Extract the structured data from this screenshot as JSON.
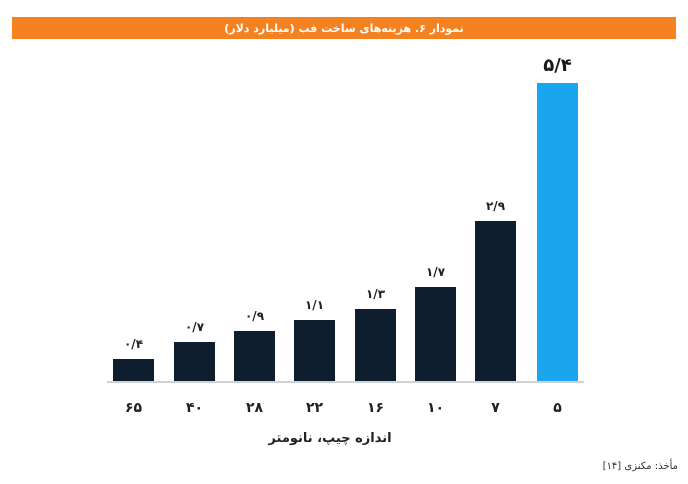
{
  "header": {
    "title": "نمودار ۶. هزینه‌های ساخت فب (میلیارد دلار)",
    "background_color": "#F58220"
  },
  "chart_data": {
    "type": "bar",
    "title": "نمودار ۶. هزینه‌های ساخت فب (میلیارد دلار)",
    "xlabel": "اندازه چیپ، نانومتر",
    "ylabel": "",
    "categories": [
      "65",
      "40",
      "28",
      "22",
      "16",
      "10",
      "7",
      "5"
    ],
    "category_labels": [
      "۶۵",
      "۴۰",
      "۲۸",
      "۲۲",
      "۱۶",
      "۱۰",
      "۷",
      "۵"
    ],
    "values": [
      0.4,
      0.7,
      0.9,
      1.1,
      1.3,
      1.7,
      2.9,
      5.4
    ],
    "value_labels": [
      "۰/۴",
      "۰/۷",
      "۰/۹",
      "۱/۱",
      "۱/۳",
      "۱/۷",
      "۲/۹",
      "۵/۴"
    ],
    "units": "billion USD",
    "grid": false,
    "legend": null,
    "colors": {
      "default_bar": "#0E1E2E",
      "highlight_bar": "#1AA6EE",
      "highlight_index": 7
    }
  },
  "footer": {
    "source": "مأخذ: مکنزی [۱۴]"
  }
}
